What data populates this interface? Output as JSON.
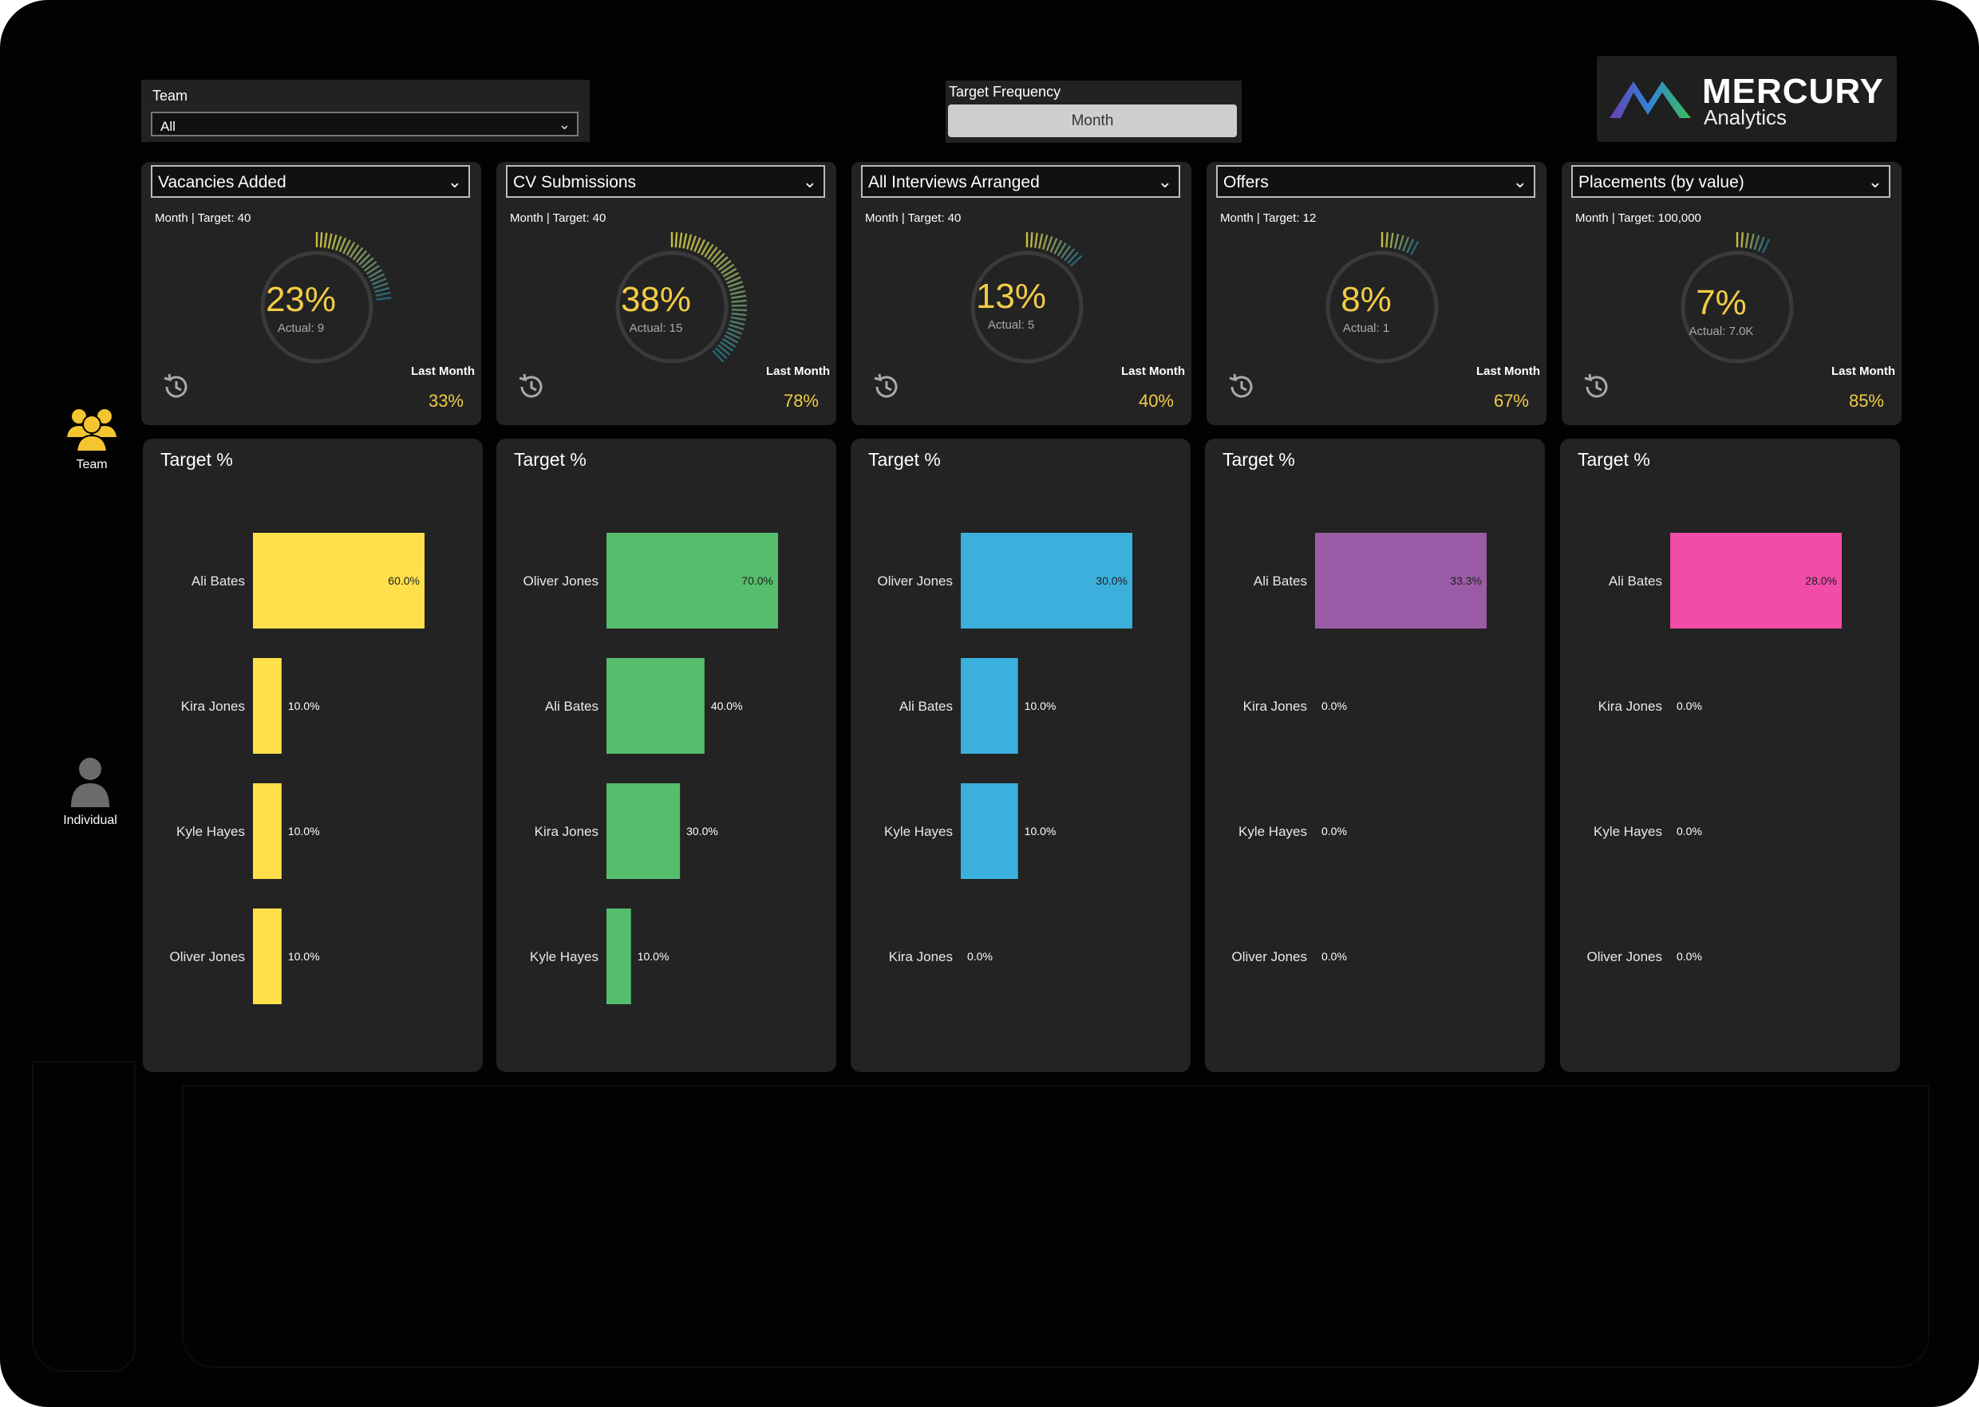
{
  "nav": {
    "team_label": "Team",
    "individual_label": "Individual",
    "team_color": "#f2c531",
    "individual_color": "#6b6b6b"
  },
  "team_slicer": {
    "label": "Team",
    "value": "All"
  },
  "frequency_slicer": {
    "label": "Target Frequency",
    "value": "Month"
  },
  "logo": {
    "name": "MERCURY",
    "tagline": "Analytics"
  },
  "kpis": [
    {
      "metric": "Vacancies Added",
      "subtitle": "Month | Target: 40",
      "percent": "23%",
      "fraction": 0.23,
      "actual": "Actual: 9",
      "last_month_label": "Last Month",
      "last_month": "33%"
    },
    {
      "metric": "CV Submissions",
      "subtitle": "Month | Target: 40",
      "percent": "38%",
      "fraction": 0.38,
      "actual": "Actual: 15",
      "last_month_label": "Last Month",
      "last_month": "78%"
    },
    {
      "metric": "All Interviews Arranged",
      "subtitle": "Month | Target: 40",
      "percent": "13%",
      "fraction": 0.13,
      "actual": "Actual: 5",
      "last_month_label": "Last Month",
      "last_month": "40%"
    },
    {
      "metric": "Offers",
      "subtitle": "Month | Target: 12",
      "percent": "8%",
      "fraction": 0.08,
      "actual": "Actual: 1",
      "last_month_label": "Last Month",
      "last_month": "67%"
    },
    {
      "metric": "Placements (by value)",
      "subtitle": "Month | Target: 100,000",
      "percent": "7%",
      "fraction": 0.07,
      "actual": "Actual: 7.0K",
      "last_month_label": "Last Month",
      "last_month": "85%"
    }
  ],
  "chart_data": [
    {
      "type": "bar",
      "orientation": "horizontal",
      "title": "Target %",
      "color": "#ffe04a",
      "categories": [
        "Ali Bates",
        "Kira Jones",
        "Kyle Hayes",
        "Oliver Jones"
      ],
      "values": [
        60.0,
        10.0,
        10.0,
        10.0
      ],
      "labels": [
        "60.0%",
        "10.0%",
        "10.0%",
        "10.0%"
      ]
    },
    {
      "type": "bar",
      "orientation": "horizontal",
      "title": "Target %",
      "color": "#56bd6c",
      "categories": [
        "Oliver Jones",
        "Ali Bates",
        "Kira Jones",
        "Kyle Hayes"
      ],
      "values": [
        70.0,
        40.0,
        30.0,
        10.0
      ],
      "labels": [
        "70.0%",
        "40.0%",
        "30.0%",
        "10.0%"
      ]
    },
    {
      "type": "bar",
      "orientation": "horizontal",
      "title": "Target %",
      "color": "#3bb0dd",
      "categories": [
        "Oliver Jones",
        "Ali Bates",
        "Kyle Hayes",
        "Kira Jones"
      ],
      "values": [
        30.0,
        10.0,
        10.0,
        0.0
      ],
      "labels": [
        "30.0%",
        "10.0%",
        "10.0%",
        "0.0%"
      ]
    },
    {
      "type": "bar",
      "orientation": "horizontal",
      "title": "Target %",
      "color": "#9b5ba6",
      "categories": [
        "Ali Bates",
        "Kira Jones",
        "Kyle Hayes",
        "Oliver Jones"
      ],
      "values": [
        33.3,
        0.0,
        0.0,
        0.0
      ],
      "labels": [
        "33.3%",
        "0.0%",
        "0.0%",
        "0.0%"
      ]
    },
    {
      "type": "bar",
      "orientation": "horizontal",
      "title": "Target %",
      "color": "#f04ca8",
      "categories": [
        "Ali Bates",
        "Kira Jones",
        "Kyle Hayes",
        "Oliver Jones"
      ],
      "values": [
        28.0,
        0.0,
        0.0,
        0.0
      ],
      "labels": [
        "28.0%",
        "0.0%",
        "0.0%",
        "0.0%"
      ]
    }
  ]
}
